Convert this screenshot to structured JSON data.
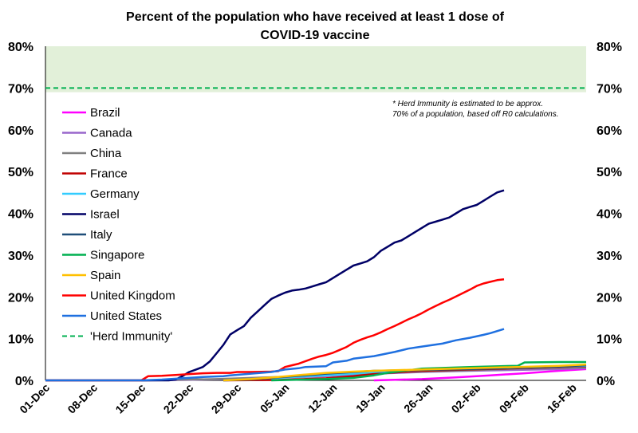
{
  "chart_data": {
    "type": "line",
    "title_line1": "Percent of the population who have received at least 1 dose of",
    "title_line2": "COVID-19 vaccine",
    "ylim": [
      0,
      80
    ],
    "y_ticks": [
      "0%",
      "10%",
      "20%",
      "30%",
      "40%",
      "50%",
      "60%",
      "70%",
      "80%"
    ],
    "x_ticks": [
      "01-Dec",
      "08-Dec",
      "15-Dec",
      "22-Dec",
      "29-Dec",
      "05-Jan",
      "12-Jan",
      "19-Jan",
      "26-Jan",
      "02-Feb",
      "09-Feb",
      "16-Feb"
    ],
    "x_range_days": [
      0,
      79
    ],
    "shaded_band": [
      69,
      80
    ],
    "grid": false,
    "legend_position": "left",
    "annotation": {
      "line1": "* Herd Immunity is estimated to be approx.",
      "line2": "70% of a population, based off R0 calculations."
    },
    "series": [
      {
        "name": "Brazil",
        "color": "#ff00ff",
        "points": [
          [
            48,
            0
          ],
          [
            55,
            0.3
          ],
          [
            60,
            0.7
          ],
          [
            65,
            1.2
          ],
          [
            70,
            1.7
          ],
          [
            75,
            2.3
          ],
          [
            79,
            2.7
          ]
        ]
      },
      {
        "name": "Canada",
        "color": "#9966cc",
        "points": [
          [
            14,
            0
          ],
          [
            20,
            0.1
          ],
          [
            27,
            0.3
          ],
          [
            34,
            0.6
          ],
          [
            41,
            1.0
          ],
          [
            48,
            1.6
          ],
          [
            55,
            2.0
          ],
          [
            62,
            2.3
          ],
          [
            69,
            2.5
          ],
          [
            75,
            2.7
          ],
          [
            79,
            2.9
          ]
        ]
      },
      {
        "name": "China",
        "color": "#808080",
        "points": [
          [
            14,
            0
          ],
          [
            25,
            0.3
          ],
          [
            34,
            0.8
          ],
          [
            41,
            1.3
          ],
          [
            48,
            1.8
          ],
          [
            55,
            2.1
          ],
          [
            62,
            2.4
          ],
          [
            69,
            2.8
          ],
          [
            75,
            3.0
          ],
          [
            79,
            3.1
          ]
        ]
      },
      {
        "name": "France",
        "color": "#c00000",
        "points": [
          [
            26,
            0
          ],
          [
            34,
            0.1
          ],
          [
            41,
            0.5
          ],
          [
            45,
            1.0
          ],
          [
            48,
            1.5
          ],
          [
            52,
            2.0
          ],
          [
            55,
            2.3
          ],
          [
            62,
            2.6
          ],
          [
            69,
            2.9
          ],
          [
            75,
            3.2
          ],
          [
            79,
            3.4
          ]
        ]
      },
      {
        "name": "Germany",
        "color": "#33ccff",
        "points": [
          [
            26,
            0
          ],
          [
            30,
            0.3
          ],
          [
            34,
            0.6
          ],
          [
            41,
            1.2
          ],
          [
            45,
            1.6
          ],
          [
            48,
            2.0
          ],
          [
            52,
            2.3
          ],
          [
            55,
            2.5
          ],
          [
            62,
            2.8
          ],
          [
            69,
            3.0
          ],
          [
            75,
            3.3
          ],
          [
            79,
            3.5
          ]
        ]
      },
      {
        "name": "Israel",
        "color": "#000066",
        "points": [
          [
            0,
            0
          ],
          [
            18,
            0
          ],
          [
            19,
            0.2
          ],
          [
            20,
            1.0
          ],
          [
            21,
            2.0
          ],
          [
            22,
            2.6
          ],
          [
            23,
            3.2
          ],
          [
            24,
            4.5
          ],
          [
            25,
            6.5
          ],
          [
            26,
            8.5
          ],
          [
            27,
            11.0
          ],
          [
            28,
            12.0
          ],
          [
            29,
            13.0
          ],
          [
            30,
            15.0
          ],
          [
            31,
            16.5
          ],
          [
            32,
            18.0
          ],
          [
            33,
            19.5
          ],
          [
            34,
            20.3
          ],
          [
            35,
            21.0
          ],
          [
            36,
            21.5
          ],
          [
            37,
            21.7
          ],
          [
            38,
            22.0
          ],
          [
            39,
            22.5
          ],
          [
            40,
            23.0
          ],
          [
            41,
            23.5
          ],
          [
            42,
            24.5
          ],
          [
            43,
            25.5
          ],
          [
            44,
            26.5
          ],
          [
            45,
            27.5
          ],
          [
            46,
            28.0
          ],
          [
            47,
            28.5
          ],
          [
            48,
            29.5
          ],
          [
            49,
            31.0
          ],
          [
            50,
            32.0
          ],
          [
            51,
            33.0
          ],
          [
            52,
            33.5
          ],
          [
            53,
            34.5
          ],
          [
            54,
            35.5
          ],
          [
            55,
            36.5
          ],
          [
            56,
            37.5
          ],
          [
            57,
            38.0
          ],
          [
            58,
            38.5
          ],
          [
            59,
            39.0
          ],
          [
            60,
            40.0
          ],
          [
            61,
            41.0
          ],
          [
            62,
            41.5
          ],
          [
            63,
            42.0
          ],
          [
            64,
            43.0
          ],
          [
            65,
            44.0
          ],
          [
            66,
            45.0
          ],
          [
            67,
            45.5
          ]
        ]
      },
      {
        "name": "Italy",
        "color": "#1f4e79",
        "points": [
          [
            26,
            0
          ],
          [
            30,
            0.2
          ],
          [
            34,
            0.7
          ],
          [
            38,
            1.2
          ],
          [
            41,
            1.6
          ],
          [
            45,
            2.0
          ],
          [
            48,
            2.3
          ],
          [
            55,
            2.5
          ],
          [
            62,
            2.7
          ],
          [
            69,
            3.0
          ],
          [
            75,
            3.3
          ],
          [
            79,
            3.6
          ]
        ]
      },
      {
        "name": "Singapore",
        "color": "#00b050",
        "points": [
          [
            33,
            0
          ],
          [
            41,
            0.3
          ],
          [
            45,
            0.6
          ],
          [
            48,
            1.2
          ],
          [
            50,
            1.8
          ],
          [
            55,
            2.8
          ],
          [
            62,
            3.2
          ],
          [
            69,
            3.5
          ],
          [
            70,
            4.3
          ],
          [
            75,
            4.4
          ],
          [
            79,
            4.4
          ]
        ]
      },
      {
        "name": "Spain",
        "color": "#ffc000",
        "points": [
          [
            26,
            0
          ],
          [
            30,
            0.3
          ],
          [
            34,
            0.8
          ],
          [
            38,
            1.4
          ],
          [
            41,
            1.8
          ],
          [
            45,
            2.1
          ],
          [
            48,
            2.3
          ],
          [
            55,
            2.6
          ],
          [
            62,
            2.9
          ],
          [
            69,
            3.2
          ],
          [
            75,
            3.5
          ],
          [
            79,
            3.8
          ]
        ]
      },
      {
        "name": "United Kingdom",
        "color": "#ff0000",
        "points": [
          [
            0,
            0
          ],
          [
            14,
            0
          ],
          [
            15,
            1.0
          ],
          [
            17,
            1.1
          ],
          [
            19,
            1.3
          ],
          [
            21,
            1.5
          ],
          [
            23,
            1.7
          ],
          [
            25,
            1.8
          ],
          [
            27,
            1.8
          ],
          [
            28,
            2.0
          ],
          [
            30,
            2.0
          ],
          [
            33,
            2.1
          ],
          [
            34,
            2.2
          ],
          [
            35,
            3.2
          ],
          [
            36,
            3.6
          ],
          [
            37,
            4.0
          ],
          [
            38,
            4.6
          ],
          [
            39,
            5.2
          ],
          [
            40,
            5.7
          ],
          [
            41,
            6.1
          ],
          [
            42,
            6.6
          ],
          [
            43,
            7.3
          ],
          [
            44,
            8.0
          ],
          [
            45,
            9.0
          ],
          [
            46,
            9.7
          ],
          [
            47,
            10.3
          ],
          [
            48,
            10.8
          ],
          [
            49,
            11.5
          ],
          [
            50,
            12.3
          ],
          [
            51,
            13.0
          ],
          [
            52,
            13.8
          ],
          [
            53,
            14.6
          ],
          [
            54,
            15.3
          ],
          [
            55,
            16.1
          ],
          [
            56,
            17.0
          ],
          [
            57,
            17.8
          ],
          [
            58,
            18.6
          ],
          [
            59,
            19.3
          ],
          [
            60,
            20.1
          ],
          [
            61,
            20.9
          ],
          [
            62,
            21.7
          ],
          [
            63,
            22.6
          ],
          [
            64,
            23.2
          ],
          [
            65,
            23.6
          ],
          [
            66,
            24.0
          ],
          [
            67,
            24.2
          ]
        ]
      },
      {
        "name": "United States",
        "color": "#1f70e0",
        "points": [
          [
            0,
            0
          ],
          [
            14,
            0
          ],
          [
            17,
            0.2
          ],
          [
            20,
            0.5
          ],
          [
            23,
            0.8
          ],
          [
            26,
            1.0
          ],
          [
            27,
            1.2
          ],
          [
            30,
            1.6
          ],
          [
            33,
            2.0
          ],
          [
            34,
            2.3
          ],
          [
            35,
            2.6
          ],
          [
            37,
            2.9
          ],
          [
            38,
            3.2
          ],
          [
            41,
            3.4
          ],
          [
            42,
            4.3
          ],
          [
            44,
            4.7
          ],
          [
            45,
            5.2
          ],
          [
            48,
            5.8
          ],
          [
            51,
            6.8
          ],
          [
            53,
            7.6
          ],
          [
            55,
            8.1
          ],
          [
            58,
            8.8
          ],
          [
            60,
            9.6
          ],
          [
            62,
            10.2
          ],
          [
            64,
            10.9
          ],
          [
            65,
            11.3
          ],
          [
            66,
            11.8
          ],
          [
            67,
            12.3
          ]
        ]
      }
    ],
    "herd_line": {
      "name": "'Herd Immunity'",
      "color": "#00b050",
      "value": 70
    }
  }
}
